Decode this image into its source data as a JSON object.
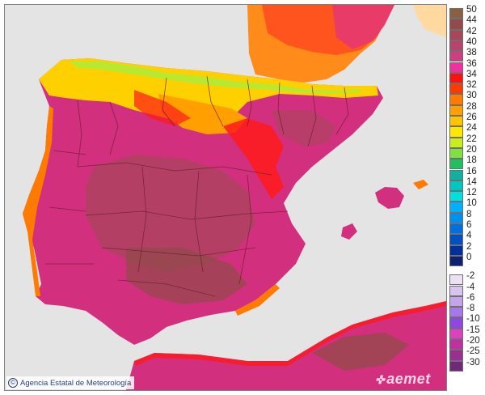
{
  "map": {
    "credit": "Agencia Estatal de Meteorología",
    "credit_symbol": "©",
    "logo_text": "aemet",
    "legend": [
      {
        "label": "50",
        "color": "#8a6042"
      },
      {
        "label": "44",
        "color": "#924a4a"
      },
      {
        "label": "42",
        "color": "#a8465c"
      },
      {
        "label": "40",
        "color": "#b8436c"
      },
      {
        "label": "38",
        "color": "#cc3f80"
      },
      {
        "label": "36",
        "color": "#f030a0"
      },
      {
        "label": "34",
        "color": "#ff1010"
      },
      {
        "label": "32",
        "color": "#ff3a00"
      },
      {
        "label": "30",
        "color": "#ff7a00"
      },
      {
        "label": "28",
        "color": "#ffa000"
      },
      {
        "label": "26",
        "color": "#ffc400"
      },
      {
        "label": "24",
        "color": "#ffe800"
      },
      {
        "label": "22",
        "color": "#c8ee20"
      },
      {
        "label": "20",
        "color": "#80e040"
      },
      {
        "label": "18",
        "color": "#20c060"
      },
      {
        "label": "16",
        "color": "#10b0a0"
      },
      {
        "label": "14",
        "color": "#00c8c0"
      },
      {
        "label": "12",
        "color": "#00e0e0"
      },
      {
        "label": "10",
        "color": "#00b0ff"
      },
      {
        "label": "8",
        "color": "#0090f0"
      },
      {
        "label": "6",
        "color": "#0070e0"
      },
      {
        "label": "4",
        "color": "#0050c0"
      },
      {
        "label": "2",
        "color": "#0030a0"
      },
      {
        "label": "0",
        "color": "#102070"
      },
      {
        "label": "-2",
        "color": "#ebe0f4"
      },
      {
        "label": "-4",
        "color": "#d8c4ee"
      },
      {
        "label": "-6",
        "color": "#c4a4ea"
      },
      {
        "label": "-8",
        "color": "#a878e8"
      },
      {
        "label": "-10",
        "color": "#8c48e0"
      },
      {
        "label": "-15",
        "color": "#e040c0"
      },
      {
        "label": "-20",
        "color": "#c030a0"
      },
      {
        "label": "-25",
        "color": "#983090"
      },
      {
        "label": "-30",
        "color": "#702878"
      }
    ]
  }
}
